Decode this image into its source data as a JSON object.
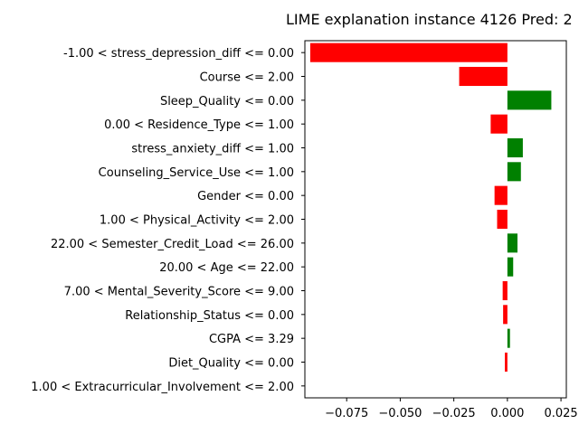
{
  "chart_data": {
    "type": "bar",
    "orientation": "horizontal",
    "title": "LIME explanation instance 4126 Pred: 2",
    "xlabel": "",
    "ylabel": "",
    "xlim": [
      -0.0945,
      0.0275
    ],
    "xticks": [
      -0.075,
      -0.05,
      -0.025,
      0.0,
      0.025
    ],
    "xtick_labels": [
      "−0.075",
      "−0.050",
      "−0.025",
      "0.000",
      "0.025"
    ],
    "grid": false,
    "positive_color": "#008000",
    "negative_color": "#ff0000",
    "categories": [
      "-1.00 < stress_depression_diff <= 0.00",
      "Course <= 2.00",
      "Sleep_Quality <= 0.00",
      "0.00 < Residence_Type <= 1.00",
      "stress_anxiety_diff <= 1.00",
      "Counseling_Service_Use <= 1.00",
      "Gender <= 0.00",
      "1.00 < Physical_Activity <= 2.00",
      "22.00 < Semester_Credit_Load <= 26.00",
      "20.00 < Age <= 22.00",
      "7.00 < Mental_Severity_Score <= 9.00",
      "Relationship_Status <= 0.00",
      "CGPA <= 3.29",
      "Diet_Quality <= 0.00",
      "1.00 < Extracurricular_Involvement <= 2.00"
    ],
    "values": [
      -0.092,
      -0.0225,
      0.0205,
      -0.0078,
      0.0072,
      0.0063,
      -0.006,
      -0.0048,
      0.0047,
      0.0027,
      -0.0022,
      -0.002,
      0.0012,
      -0.0012,
      0.0
    ]
  }
}
